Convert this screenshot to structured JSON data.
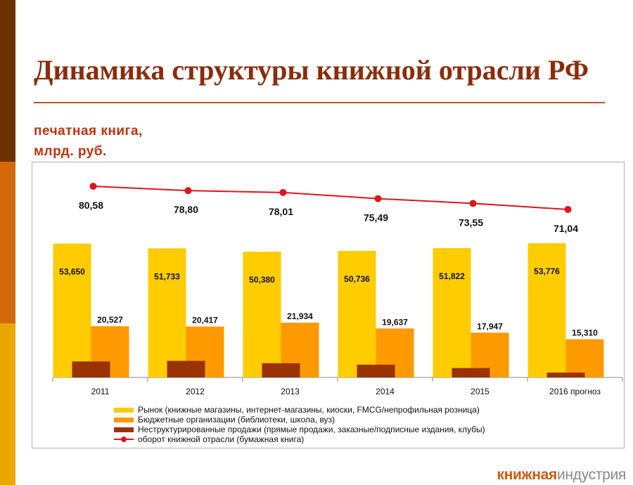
{
  "header": {
    "title": "Динамика структуры книжной отрасли РФ",
    "subtitle_line1": "печатная книга,",
    "subtitle_line2": "млрд. руб."
  },
  "chart_data": {
    "type": "bar",
    "categories": [
      "2011",
      "2012",
      "2013",
      "2014",
      "2015",
      "2016 прогноз"
    ],
    "series": [
      {
        "name": "Рынок (книжные магазины, интернет-магазины, киоски, FMCG/непрофильная розница)",
        "kind": "bar",
        "color": "#ffcc00",
        "values": [
          53.65,
          51.733,
          50.38,
          50.736,
          51.822,
          53.776
        ],
        "labels": [
          "53,650",
          "51,733",
          "50,380",
          "50,736",
          "51,822",
          "53,776"
        ]
      },
      {
        "name": "Бюджетные организации (библиотеки, школа, вуз)",
        "kind": "bar",
        "color": "#ff9900",
        "values": [
          20.527,
          20.417,
          21.934,
          19.637,
          17.947,
          15.31
        ],
        "labels": [
          "20,527",
          "20,417",
          "21,934",
          "19,637",
          "17,947",
          "15,310"
        ]
      },
      {
        "name": "Неструктурированные продажи (прямые продажи, заказные/подписные издания, клубы)",
        "kind": "bar",
        "color": "#993300",
        "values": [
          6.4,
          6.65,
          5.7,
          5.12,
          3.78,
          1.95
        ]
      },
      {
        "name": "оборот книжной отрасли (бумажная книга)",
        "kind": "line",
        "color": "#e0141e",
        "values": [
          80.58,
          78.8,
          78.01,
          75.49,
          73.55,
          71.04
        ],
        "labels": [
          "80,58",
          "78,80",
          "78,01",
          "75,49",
          "73,55",
          "71,04"
        ]
      }
    ],
    "legend_position": "bottom",
    "grid": false
  },
  "logo": {
    "part1": "книжная",
    "part2": "индустрия"
  }
}
